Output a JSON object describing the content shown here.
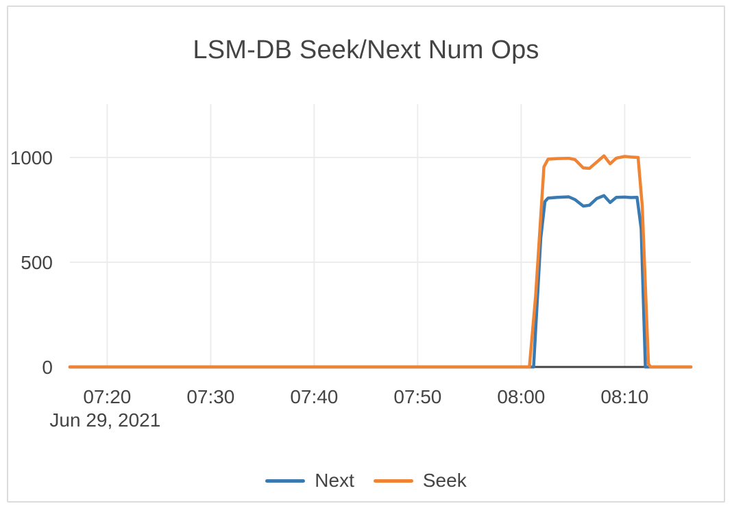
{
  "window": {
    "background": "#ffffff",
    "border_color": "#dcdcdc"
  },
  "chart_data": {
    "type": "line",
    "title": "LSM-DB Seek/Next Num Ops",
    "xlabel": "",
    "ylabel": "",
    "grid": true,
    "legend_position": "bottom-center",
    "colors": {
      "text": "#444444",
      "grid": "#ececec",
      "zero_line": "#444444",
      "next": "#3a7ab1",
      "seek": "#ef8434"
    },
    "x_axis": {
      "date_label": "Jun 29, 2021",
      "tick_labels": [
        "07:20",
        "07:30",
        "07:40",
        "07:50",
        "08:00",
        "08:10"
      ],
      "tick_minutes": [
        20,
        30,
        40,
        50,
        60,
        70
      ],
      "range_minutes": [
        16.4,
        76.4
      ]
    },
    "y_axis": {
      "tick_labels": [
        "0",
        "500",
        "1000"
      ],
      "tick_values": [
        0,
        500,
        1000
      ],
      "range": [
        0,
        1255
      ]
    },
    "series": [
      {
        "name": "Next",
        "color_key": "next",
        "points": [
          [
            16.4,
            0
          ],
          [
            20,
            0
          ],
          [
            25,
            0
          ],
          [
            30,
            0
          ],
          [
            35,
            0
          ],
          [
            40,
            0
          ],
          [
            45,
            0
          ],
          [
            50,
            0
          ],
          [
            55,
            0
          ],
          [
            58,
            0
          ],
          [
            60,
            0
          ],
          [
            61.2,
            0
          ],
          [
            61.9,
            615
          ],
          [
            62.3,
            790
          ],
          [
            62.6,
            806
          ],
          [
            63.5,
            810
          ],
          [
            64.6,
            812
          ],
          [
            65.2,
            799
          ],
          [
            66.0,
            768
          ],
          [
            66.6,
            772
          ],
          [
            67.3,
            804
          ],
          [
            68.0,
            818
          ],
          [
            68.6,
            785
          ],
          [
            69.2,
            810
          ],
          [
            70.0,
            811
          ],
          [
            70.6,
            809
          ],
          [
            71.2,
            810
          ],
          [
            71.6,
            660
          ],
          [
            72.0,
            0
          ],
          [
            73,
            0
          ],
          [
            74,
            0
          ],
          [
            75,
            0
          ],
          [
            76.4,
            0
          ]
        ]
      },
      {
        "name": "Seek",
        "color_key": "seek",
        "points": [
          [
            16.4,
            0
          ],
          [
            20,
            0
          ],
          [
            25,
            0
          ],
          [
            30,
            0
          ],
          [
            35,
            0
          ],
          [
            40,
            0
          ],
          [
            45,
            0
          ],
          [
            50,
            0
          ],
          [
            55,
            0
          ],
          [
            58,
            0
          ],
          [
            60,
            0
          ],
          [
            60.8,
            0
          ],
          [
            61.4,
            340
          ],
          [
            62.2,
            955
          ],
          [
            62.6,
            992
          ],
          [
            63.5,
            995
          ],
          [
            64.6,
            996
          ],
          [
            65.2,
            990
          ],
          [
            66.0,
            950
          ],
          [
            66.6,
            948
          ],
          [
            67.3,
            978
          ],
          [
            68.0,
            1008
          ],
          [
            68.6,
            970
          ],
          [
            69.2,
            997
          ],
          [
            70.0,
            1005
          ],
          [
            70.6,
            1002
          ],
          [
            71.3,
            1000
          ],
          [
            71.7,
            770
          ],
          [
            72.3,
            15
          ],
          [
            72.5,
            0
          ],
          [
            73.5,
            0
          ],
          [
            75,
            0
          ],
          [
            76.4,
            0
          ]
        ]
      }
    ]
  }
}
